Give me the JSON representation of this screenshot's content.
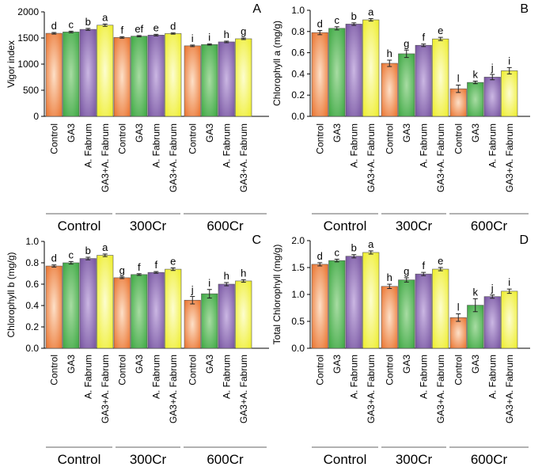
{
  "colors": {
    "Control": "#e8681f",
    "GA3": "#33a33a",
    "A. Fabrum": "#6e4a9a",
    "GA3+A. Fabrum": "#ecec1a"
  },
  "chart_data": [
    {
      "panel": "A",
      "type": "bar",
      "ylabel": "Vigor index",
      "ylim": [
        0,
        2000
      ],
      "yticks": [
        0,
        500,
        1000,
        1500,
        2000
      ],
      "groups": [
        "Control",
        "300Cr",
        "600Cr"
      ],
      "categories": [
        "Control",
        "GA3",
        "A. Fabrum",
        "GA3+A. Fabrum"
      ],
      "values": [
        [
          1590,
          1615,
          1665,
          1745
        ],
        [
          1510,
          1535,
          1555,
          1585
        ],
        [
          1350,
          1375,
          1425,
          1485
        ]
      ],
      "errors": [
        [
          15,
          15,
          18,
          22
        ],
        [
          15,
          12,
          15,
          12
        ],
        [
          15,
          12,
          15,
          15
        ]
      ],
      "letters": [
        [
          "d",
          "c",
          "b",
          "a"
        ],
        [
          "f",
          "ef",
          "e",
          "d"
        ],
        [
          "i",
          "i",
          "h",
          "g"
        ]
      ]
    },
    {
      "panel": "B",
      "type": "bar",
      "ylabel": "Chlorophyll a  (mg/g)",
      "ylim": [
        0,
        1.0
      ],
      "yticks": [
        "0.0",
        "0.2",
        "0.4",
        "0.6",
        "0.8",
        "1.0"
      ],
      "groups": [
        "Control",
        "300Cr",
        "600Cr"
      ],
      "categories": [
        "Control",
        "GA3",
        "A. Fabrum",
        "GA3+A. Fabrum"
      ],
      "values": [
        [
          0.79,
          0.83,
          0.87,
          0.91
        ],
        [
          0.5,
          0.59,
          0.67,
          0.73
        ],
        [
          0.26,
          0.32,
          0.37,
          0.43
        ]
      ],
      "errors": [
        [
          0.02,
          0.015,
          0.012,
          0.012
        ],
        [
          0.03,
          0.035,
          0.012,
          0.015
        ],
        [
          0.035,
          0.012,
          0.025,
          0.03
        ]
      ],
      "letters": [
        [
          "d",
          "c",
          "b",
          "a"
        ],
        [
          "h",
          "g",
          "f",
          "e"
        ],
        [
          "l",
          "k",
          "j",
          "i"
        ]
      ]
    },
    {
      "panel": "C",
      "type": "bar",
      "ylabel": "Chlorophyll b  (mg/g)",
      "ylim": [
        0,
        1.0
      ],
      "yticks": [
        "0.0",
        "0.2",
        "0.4",
        "0.6",
        "0.8",
        "1.0"
      ],
      "groups": [
        "Control",
        "300Cr",
        "600Cr"
      ],
      "categories": [
        "Control",
        "GA3",
        "A. Fabrum",
        "GA3+A. Fabrum"
      ],
      "values": [
        [
          0.77,
          0.8,
          0.84,
          0.87
        ],
        [
          0.66,
          0.69,
          0.71,
          0.74
        ],
        [
          0.45,
          0.51,
          0.6,
          0.63
        ]
      ],
      "errors": [
        [
          0.01,
          0.012,
          0.012,
          0.012
        ],
        [
          0.008,
          0.008,
          0.008,
          0.012
        ],
        [
          0.035,
          0.04,
          0.015,
          0.012
        ]
      ],
      "letters": [
        [
          "d",
          "c",
          "b",
          "a"
        ],
        [
          "g",
          "f",
          "f",
          "e"
        ],
        [
          "j",
          "i",
          "h",
          "h"
        ]
      ]
    },
    {
      "panel": "D",
      "type": "bar",
      "ylabel": "Total Chlorophyll  (mg/g)",
      "ylim": [
        0,
        2.0
      ],
      "yticks": [
        "0.0",
        "0.5",
        "1.0",
        "1.5",
        "2.0"
      ],
      "groups": [
        "Control",
        "300Cr",
        "600Cr"
      ],
      "categories": [
        "Control",
        "GA3",
        "A. Fabrum",
        "GA3+A. Fabrum"
      ],
      "values": [
        [
          1.56,
          1.63,
          1.71,
          1.78
        ],
        [
          1.15,
          1.27,
          1.38,
          1.47
        ],
        [
          0.57,
          0.8,
          0.96,
          1.06
        ]
      ],
      "errors": [
        [
          0.03,
          0.025,
          0.03,
          0.03
        ],
        [
          0.04,
          0.04,
          0.03,
          0.03
        ],
        [
          0.07,
          0.12,
          0.03,
          0.04
        ]
      ],
      "letters": [
        [
          "d",
          "c",
          "b",
          "a"
        ],
        [
          "h",
          "g",
          "f",
          "e"
        ],
        [
          "l",
          "k",
          "j",
          "i"
        ]
      ]
    }
  ]
}
